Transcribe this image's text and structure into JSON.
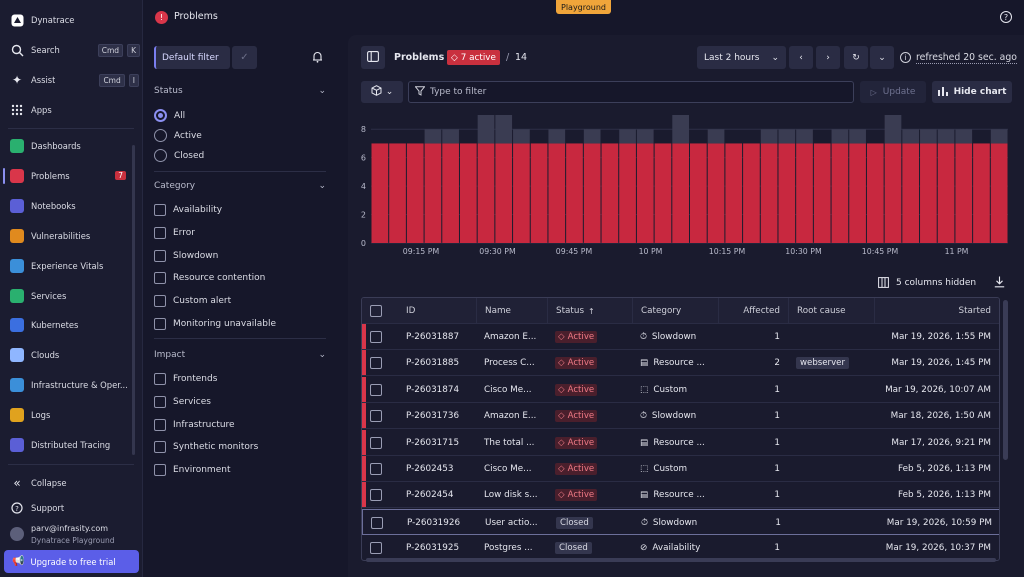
{
  "app": {
    "title": "Problems",
    "env_badge": "Playground"
  },
  "nav": {
    "brand": "Dynatrace",
    "search": "Search",
    "search_k1": "Cmd",
    "search_k2": "K",
    "assist": "Assist",
    "assist_k1": "Cmd",
    "assist_k2": "I",
    "apps": "Apps",
    "items": [
      {
        "label": "Dashboards",
        "icon": "dashboards-icon",
        "color": "#2ab06f"
      },
      {
        "label": "Problems",
        "icon": "problems-icon",
        "color": "#d9364a",
        "badge": "7"
      },
      {
        "label": "Notebooks",
        "icon": "notebooks-icon",
        "color": "#5b5fd6"
      },
      {
        "label": "Vulnerabilities",
        "icon": "vulnerabilities-icon",
        "color": "#e08a1e"
      },
      {
        "label": "Experience Vitals",
        "icon": "experience-vitals-icon",
        "color": "#3b8fd9"
      },
      {
        "label": "Services",
        "icon": "services-icon",
        "color": "#2ab06f"
      },
      {
        "label": "Kubernetes",
        "icon": "kubernetes-icon",
        "color": "#3b6fe0"
      },
      {
        "label": "Clouds",
        "icon": "clouds-icon",
        "color": "#8fb6ff"
      },
      {
        "label": "Infrastructure & Oper...",
        "icon": "infrastructure-icon",
        "color": "#3b8fd9"
      },
      {
        "label": "Logs",
        "icon": "logs-icon",
        "color": "#e0a21e"
      },
      {
        "label": "Distributed Tracing",
        "icon": "tracing-icon",
        "color": "#5b5fd6"
      }
    ],
    "collapse": "Collapse",
    "support": "Support",
    "user_email": "parv@infrasity.com",
    "user_env": "Dynatrace Playground",
    "upgrade": "Upgrade to free trial"
  },
  "filter": {
    "default": "Default filter",
    "status_title": "Status",
    "status": [
      "All",
      "Active",
      "Closed"
    ],
    "category_title": "Category",
    "category": [
      "Availability",
      "Error",
      "Slowdown",
      "Resource contention",
      "Custom alert",
      "Monitoring unavailable"
    ],
    "impact_title": "Impact",
    "impact": [
      "Frontends",
      "Services",
      "Infrastructure",
      "Synthetic monitors",
      "Environment"
    ]
  },
  "toolbar": {
    "title": "Problems",
    "active": "7 active",
    "sep": "/",
    "total": "14",
    "timeframe": "Last 2 hours",
    "refreshed": "refreshed 20 sec. ago",
    "filter_placeholder": "Type to filter",
    "update": "Update",
    "hide_chart": "Hide chart"
  },
  "chart_data": {
    "type": "bar",
    "series": [
      {
        "name": "Active",
        "color": "#c8283f",
        "values": [
          7,
          7,
          7,
          7,
          7,
          7,
          7,
          7,
          7,
          7,
          7,
          7,
          7,
          7,
          7,
          7,
          7,
          7,
          7,
          7,
          7,
          7,
          7,
          7,
          7,
          7,
          7,
          7,
          7,
          7,
          7,
          7,
          7,
          7,
          7,
          7
        ]
      },
      {
        "name": "Closed",
        "color": "#3a3c52",
        "values": [
          0,
          0,
          0,
          1,
          1,
          0,
          2,
          2,
          1,
          0,
          1,
          0,
          1,
          0,
          1,
          1,
          0,
          2,
          0,
          1,
          0,
          0,
          1,
          1,
          1,
          0,
          1,
          1,
          0,
          2,
          1,
          1,
          1,
          1,
          0,
          1
        ]
      }
    ],
    "yticks": [
      "0",
      "2",
      "4",
      "6",
      "8"
    ],
    "ylim": [
      0,
      9
    ],
    "xticks": [
      "09:15 PM",
      "09:30 PM",
      "09:45 PM",
      "10 PM",
      "10:15 PM",
      "10:30 PM",
      "10:45 PM",
      "11 PM"
    ]
  },
  "table": {
    "hidden_cols": "5 columns hidden",
    "headers": [
      "ID",
      "Name",
      "Status",
      "Category",
      "Affected",
      "Root cause",
      "Started"
    ],
    "sort_arrow": "↑",
    "rows": [
      {
        "id": "P-26031887",
        "name": "Amazon E...",
        "status": "Active",
        "cat_icon": "⏱",
        "category": "Slowdown",
        "affected": "1",
        "root": "",
        "started": "Mar 19, 2026, 1:55 PM"
      },
      {
        "id": "P-26031885",
        "name": "Process C...",
        "status": "Active",
        "cat_icon": "▤",
        "category": "Resource ...",
        "affected": "2",
        "root": "webserver",
        "started": "Mar 19, 2026, 1:45 PM"
      },
      {
        "id": "P-26031874",
        "name": "Cisco Me...",
        "status": "Active",
        "cat_icon": "⬚",
        "category": "Custom",
        "affected": "1",
        "root": "",
        "started": "Mar 19, 2026, 10:07 AM"
      },
      {
        "id": "P-26031736",
        "name": "Amazon E...",
        "status": "Active",
        "cat_icon": "⏱",
        "category": "Slowdown",
        "affected": "1",
        "root": "",
        "started": "Mar 18, 2026, 1:50 AM"
      },
      {
        "id": "P-26031715",
        "name": "The total ...",
        "status": "Active",
        "cat_icon": "▤",
        "category": "Resource ...",
        "affected": "1",
        "root": "",
        "started": "Mar 17, 2026, 9:21 PM"
      },
      {
        "id": "P-2602453",
        "name": "Cisco Me...",
        "status": "Active",
        "cat_icon": "⬚",
        "category": "Custom",
        "affected": "1",
        "root": "",
        "started": "Feb 5, 2026, 1:13 PM"
      },
      {
        "id": "P-2602454",
        "name": "Low disk s...",
        "status": "Active",
        "cat_icon": "▤",
        "category": "Resource ...",
        "affected": "1",
        "root": "",
        "started": "Feb 5, 2026, 1:13 PM"
      },
      {
        "id": "P-26031926",
        "name": "User actio...",
        "status": "Closed",
        "cat_icon": "⏱",
        "category": "Slowdown",
        "affected": "1",
        "root": "",
        "started": "Mar 19, 2026, 10:59 PM"
      },
      {
        "id": "P-26031925",
        "name": "Postgres ...",
        "status": "Closed",
        "cat_icon": "⊘",
        "category": "Availability",
        "affected": "1",
        "root": "",
        "started": "Mar 19, 2026, 10:37 PM"
      }
    ]
  }
}
